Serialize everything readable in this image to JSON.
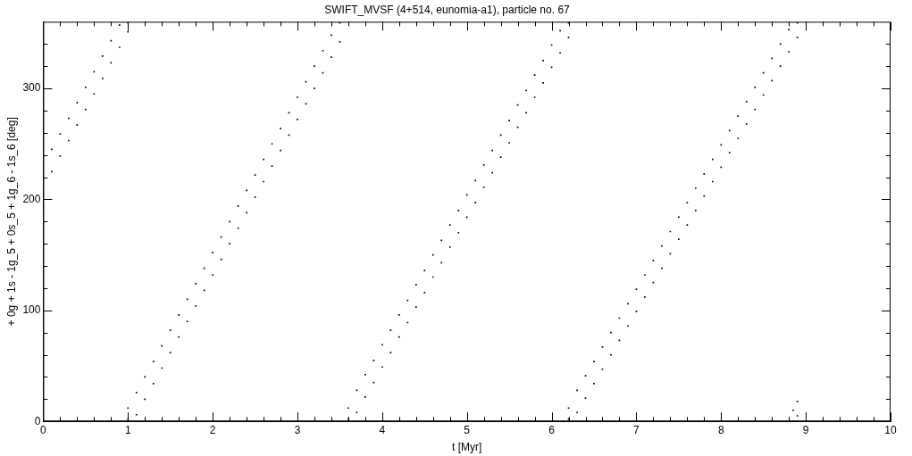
{
  "chart_data": {
    "type": "scatter",
    "title": "SWIFT_MVSF (4+514, eunomia-a1), particle no. 67",
    "xlabel": "t [Myr]",
    "ylabel": "+ 0g + 1s - 1g_5 + 0s_5 + 1g_6 - 1s_6 [deg]",
    "xlim": [
      0,
      10
    ],
    "ylim": [
      0,
      360
    ],
    "xticks": [
      0,
      {
        "value": 0.2,
        "label": null
      },
      {
        "value": 0.4,
        "label": null
      },
      {
        "value": 0.6,
        "label": null
      },
      {
        "value": 0.8,
        "label": null
      },
      1,
      {
        "value": 1.2,
        "label": null
      },
      {
        "value": 1.4,
        "label": null
      },
      {
        "value": 1.6,
        "label": null
      },
      {
        "value": 1.8,
        "label": null
      },
      2,
      {
        "value": 2.2,
        "label": null
      },
      {
        "value": 2.4,
        "label": null
      },
      {
        "value": 2.6,
        "label": null
      },
      {
        "value": 2.8,
        "label": null
      },
      3,
      {
        "value": 3.2,
        "label": null
      },
      {
        "value": 3.4,
        "label": null
      },
      {
        "value": 3.6,
        "label": null
      },
      {
        "value": 3.8,
        "label": null
      },
      4,
      {
        "value": 4.2,
        "label": null
      },
      {
        "value": 4.4,
        "label": null
      },
      {
        "value": 4.6,
        "label": null
      },
      {
        "value": 4.8,
        "label": null
      },
      5,
      {
        "value": 5.2,
        "label": null
      },
      {
        "value": 5.4,
        "label": null
      },
      {
        "value": 5.6,
        "label": null
      },
      {
        "value": 5.8,
        "label": null
      },
      6,
      {
        "value": 6.2,
        "label": null
      },
      {
        "value": 6.4,
        "label": null
      },
      {
        "value": 6.6,
        "label": null
      },
      {
        "value": 6.8,
        "label": null
      },
      7,
      {
        "value": 7.2,
        "label": null
      },
      {
        "value": 7.4,
        "label": null
      },
      {
        "value": 7.6,
        "label": null
      },
      {
        "value": 7.8,
        "label": null
      },
      8,
      {
        "value": 8.2,
        "label": null
      },
      {
        "value": 8.4,
        "label": null
      },
      {
        "value": 8.6,
        "label": null
      },
      {
        "value": 8.8,
        "label": null
      },
      9,
      {
        "value": 9.2,
        "label": null
      },
      {
        "value": 9.4,
        "label": null
      },
      {
        "value": 9.6,
        "label": null
      },
      {
        "value": 9.8,
        "label": null
      },
      10
    ],
    "yticks": [
      0,
      {
        "value": 20,
        "label": null
      },
      {
        "value": 40,
        "label": null
      },
      {
        "value": 60,
        "label": null
      },
      {
        "value": 80,
        "label": null
      },
      100,
      {
        "value": 120,
        "label": null
      },
      {
        "value": 140,
        "label": null
      },
      {
        "value": 160,
        "label": null
      },
      {
        "value": 180,
        "label": null
      },
      200,
      {
        "value": 220,
        "label": null
      },
      {
        "value": 240,
        "label": null
      },
      {
        "value": 260,
        "label": null
      },
      {
        "value": 280,
        "label": null
      },
      300,
      {
        "value": 320,
        "label": null
      },
      {
        "value": 340,
        "label": null
      }
    ],
    "grid": false,
    "legend": false,
    "marker": "square",
    "series": [
      {
        "color": "#000000",
        "x": [
          0.1,
          0.1,
          0.2,
          0.2,
          0.3,
          0.3,
          0.4,
          0.4,
          0.5,
          0.5,
          0.6,
          0.6,
          0.7,
          0.7,
          0.8,
          0.8,
          0.9,
          0.9,
          1.0,
          1.0,
          1.0,
          1.0,
          1.1,
          1.1,
          1.2,
          1.2,
          1.3,
          1.3,
          1.4,
          1.4,
          1.5,
          1.5,
          1.6,
          1.6,
          1.7,
          1.7,
          1.8,
          1.8,
          1.9,
          1.9,
          2.0,
          2.0,
          2.1,
          2.1,
          2.2,
          2.2,
          2.3,
          2.3,
          2.4,
          2.4,
          2.5,
          2.5,
          2.6,
          2.6,
          2.7,
          2.7,
          2.8,
          2.8,
          2.9,
          2.9,
          3.0,
          3.0,
          3.1,
          3.1,
          3.2,
          3.2,
          3.3,
          3.3,
          3.4,
          3.4,
          3.5,
          3.5,
          3.6,
          3.6,
          3.7,
          3.7,
          3.8,
          3.8,
          3.9,
          3.9,
          4.0,
          4.0,
          4.1,
          4.1,
          4.2,
          4.2,
          4.3,
          4.3,
          4.4,
          4.4,
          4.5,
          4.5,
          4.6,
          4.6,
          4.7,
          4.7,
          4.8,
          4.8,
          4.9,
          4.9,
          5.0,
          5.0,
          5.1,
          5.1,
          5.2,
          5.2,
          5.3,
          5.3,
          5.4,
          5.4,
          5.5,
          5.5,
          5.6,
          5.6,
          5.7,
          5.7,
          5.8,
          5.8,
          5.9,
          5.9,
          6.0,
          6.0,
          6.1,
          6.1,
          6.2,
          6.2,
          6.2,
          6.2,
          6.3,
          6.3,
          6.4,
          6.4,
          6.5,
          6.5,
          6.6,
          6.6,
          6.7,
          6.7,
          6.8,
          6.8,
          6.9,
          6.9,
          7.0,
          7.0,
          7.1,
          7.1,
          7.2,
          7.2,
          7.3,
          7.3,
          7.4,
          7.4,
          7.5,
          7.5,
          7.6,
          7.6,
          7.7,
          7.7,
          7.8,
          7.8,
          7.9,
          7.9,
          8.0,
          8.0,
          8.1,
          8.1,
          8.2,
          8.2,
          8.3,
          8.3,
          8.4,
          8.4,
          8.5,
          8.5,
          8.6,
          8.6,
          8.7,
          8.7,
          8.8,
          8.8,
          8.9,
          8.9,
          8.85,
          8.85,
          8.9,
          8.9
        ],
        "values": [
          225,
          245,
          239,
          259,
          253,
          273,
          267,
          287,
          281,
          301,
          295,
          315,
          309,
          329,
          323,
          343,
          337,
          357,
          351,
          359,
          2,
          12,
          6,
          26,
          20,
          40,
          34,
          54,
          48,
          68,
          62,
          82,
          76,
          96,
          90,
          110,
          104,
          124,
          118,
          138,
          132,
          152,
          146,
          166,
          160,
          180,
          174,
          194,
          188,
          208,
          202,
          222,
          216,
          236,
          230,
          250,
          244,
          264,
          258,
          278,
          272,
          292,
          286,
          306,
          300,
          320,
          314,
          334,
          328,
          348,
          342,
          359,
          2,
          12,
          8,
          28,
          22,
          42,
          35,
          55,
          49,
          69,
          62,
          82,
          76,
          96,
          89,
          109,
          103,
          123,
          116,
          136,
          130,
          150,
          143,
          163,
          157,
          177,
          170,
          190,
          184,
          204,
          197,
          217,
          211,
          231,
          224,
          244,
          238,
          258,
          251,
          271,
          265,
          285,
          278,
          298,
          292,
          312,
          305,
          325,
          319,
          339,
          332,
          352,
          346,
          359,
          2,
          12,
          8,
          28,
          21,
          41,
          34,
          54,
          47,
          67,
          60,
          80,
          73,
          93,
          86,
          106,
          99,
          119,
          112,
          132,
          125,
          145,
          138,
          158,
          151,
          171,
          164,
          184,
          177,
          197,
          190,
          210,
          203,
          223,
          216,
          236,
          229,
          249,
          242,
          262,
          255,
          275,
          268,
          288,
          281,
          301,
          294,
          314,
          307,
          327,
          320,
          340,
          333,
          353,
          346,
          359,
          0,
          10,
          5,
          18
        ]
      }
    ]
  }
}
